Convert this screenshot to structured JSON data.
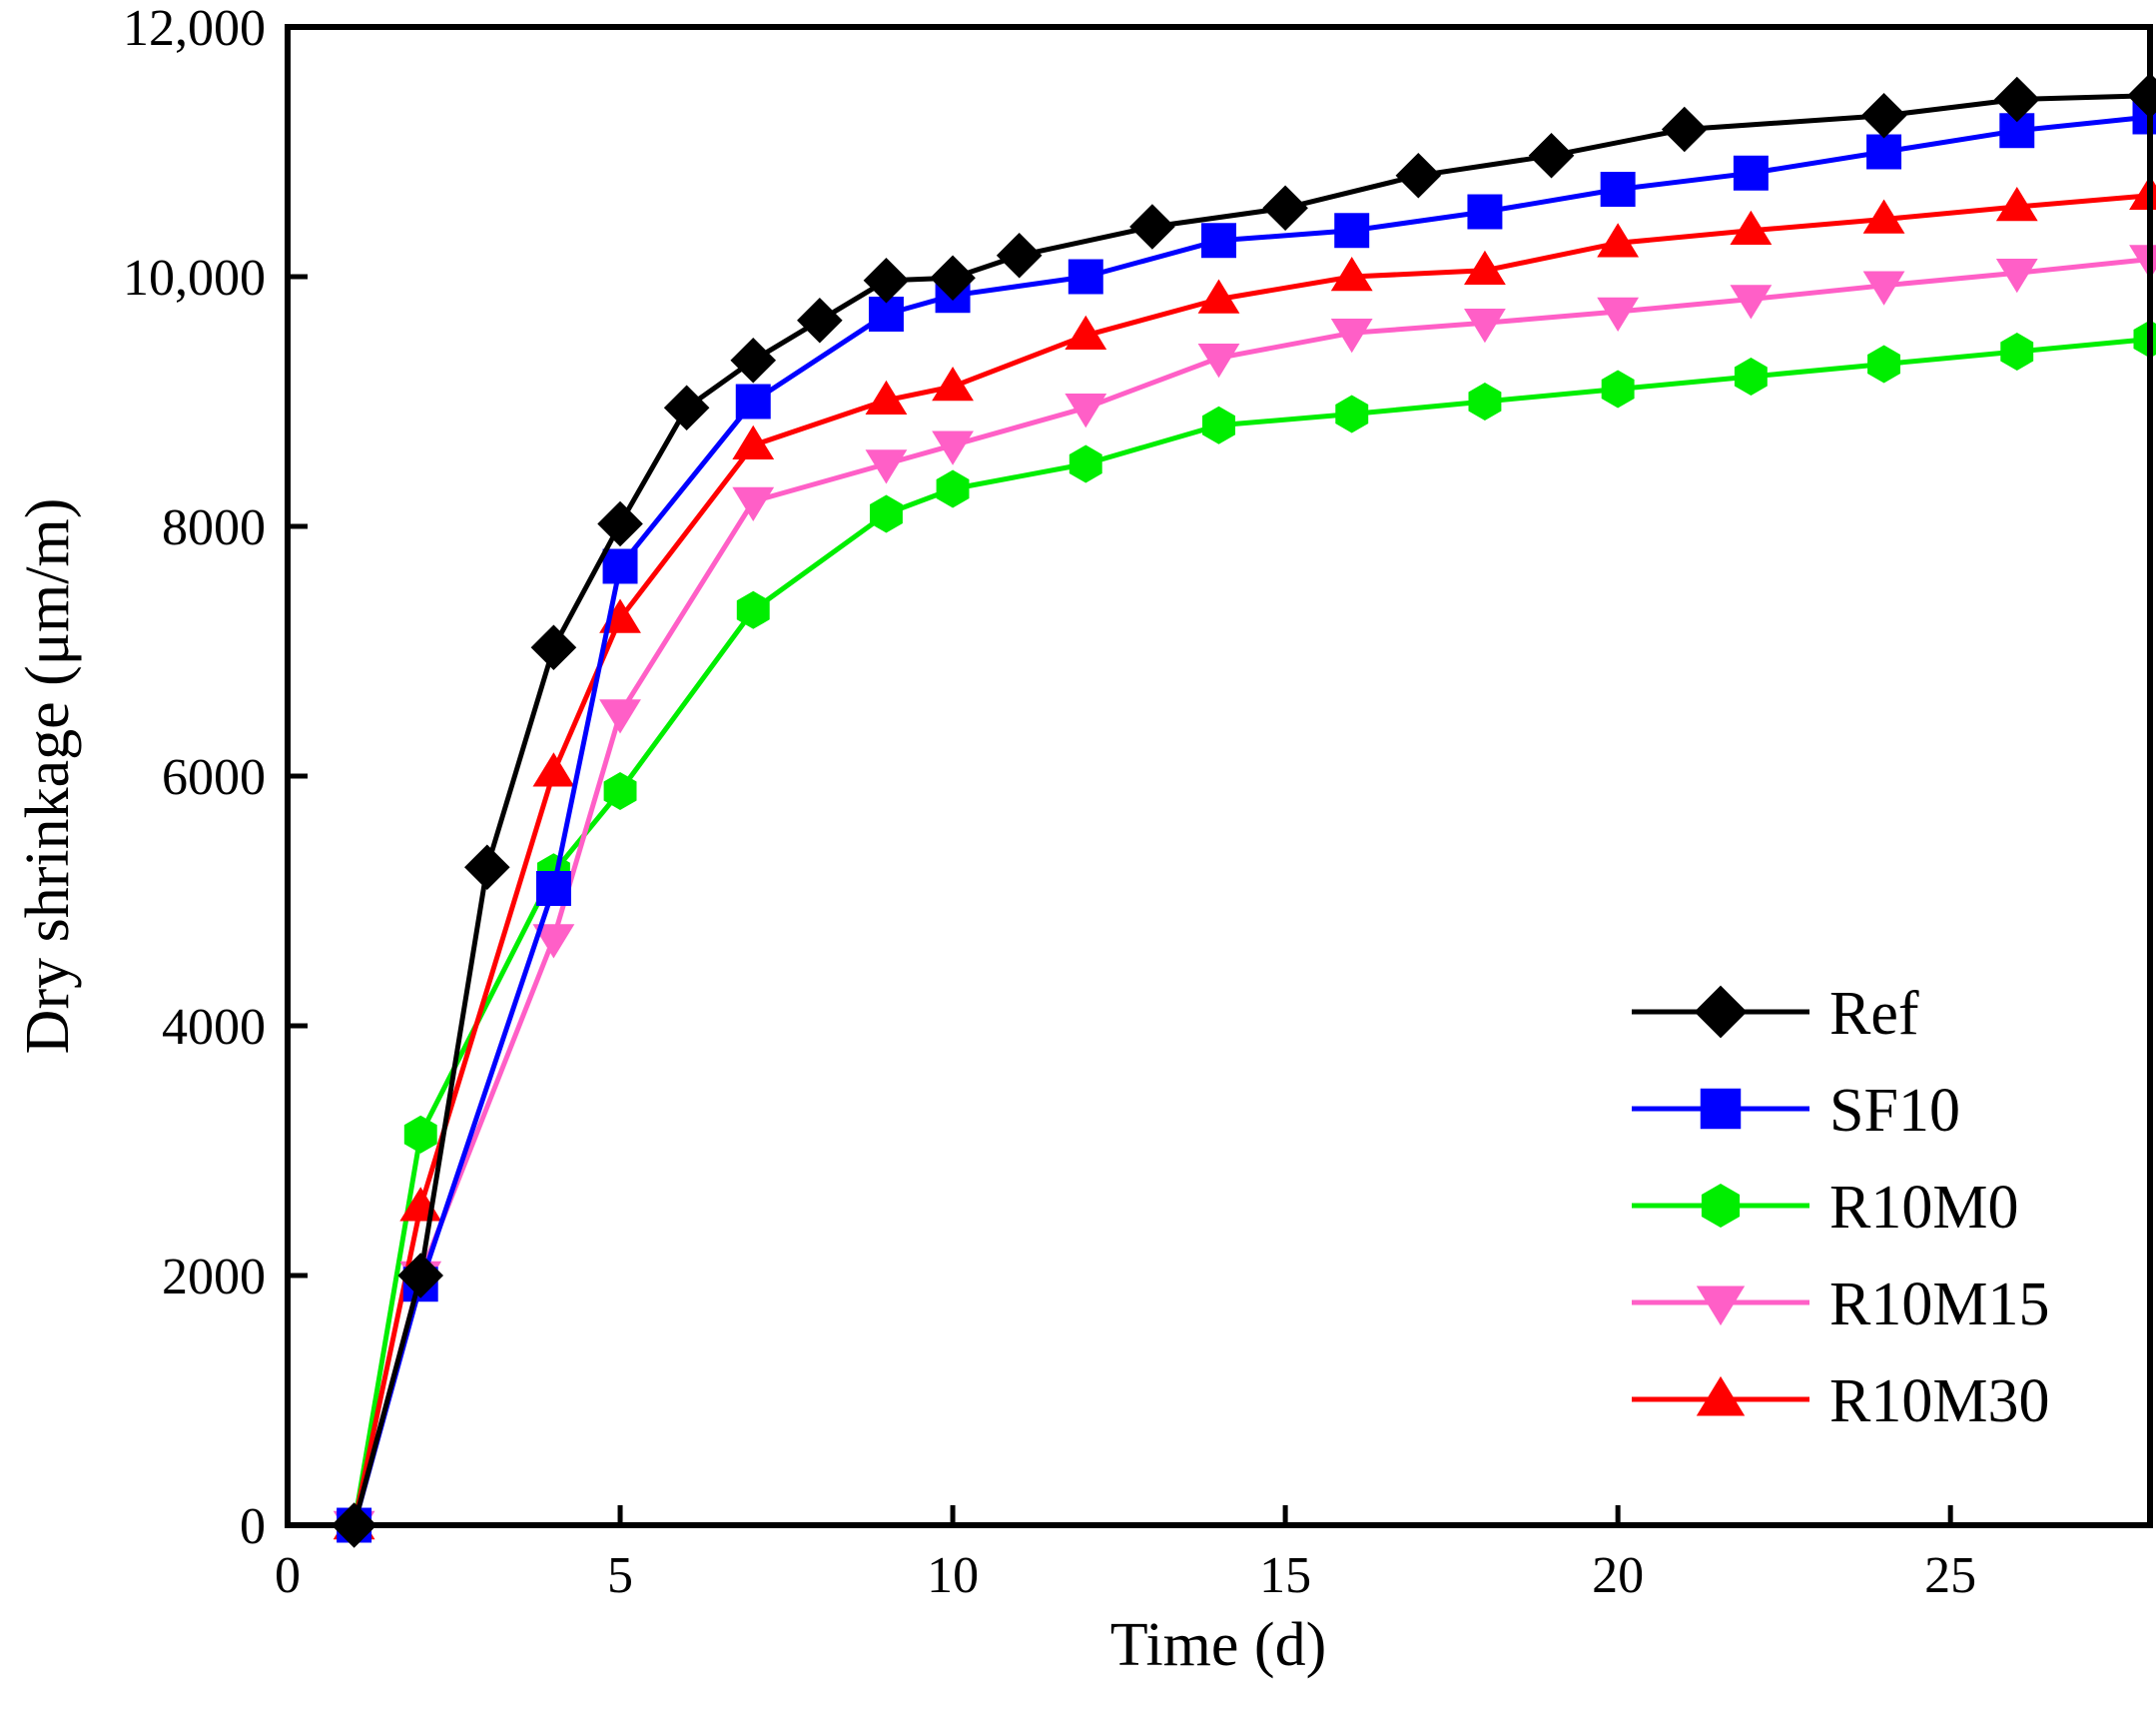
{
  "chart_data": {
    "type": "line",
    "title": "",
    "xlabel": "Time (d)",
    "ylabel": "Dry shrinkage (μm/m)",
    "xlim": [
      0,
      28
    ],
    "ylim": [
      0,
      12000
    ],
    "grid": false,
    "legend_position": "bottom-right",
    "x_ticks": [
      0,
      5,
      10,
      15,
      20,
      25
    ],
    "x_tick_labels": [
      "0",
      "5",
      "10",
      "15",
      "20",
      "25"
    ],
    "y_ticks": [
      0,
      2000,
      4000,
      6000,
      8000,
      10000,
      12000
    ],
    "y_tick_labels": [
      "0",
      "2000",
      "4000",
      "6000",
      "8000",
      "10,000",
      "12,000"
    ],
    "series": [
      {
        "name": "Ref",
        "color": "#000000",
        "marker": "diamond",
        "x": [
          1,
          2,
          3,
          4,
          5,
          6,
          7,
          8,
          9,
          10,
          11,
          13,
          15,
          17,
          19,
          21,
          24,
          26,
          28
        ],
        "y": [
          0,
          2000,
          5270,
          7030,
          8020,
          8950,
          9330,
          9650,
          9970,
          9990,
          10170,
          10400,
          10550,
          10810,
          10970,
          11180,
          11290,
          11420,
          11450
        ]
      },
      {
        "name": "SF10",
        "color": "#0000ff",
        "marker": "square",
        "x": [
          1,
          2,
          4,
          5,
          7,
          9,
          10,
          12,
          14,
          16,
          18,
          20,
          22,
          24,
          26,
          28
        ],
        "y": [
          0,
          1930,
          5100,
          7680,
          9000,
          9700,
          9850,
          10000,
          10290,
          10370,
          10520,
          10700,
          10830,
          11000,
          11170,
          11280
        ]
      },
      {
        "name": "R10M0",
        "color": "#00ee00",
        "marker": "hexagon",
        "x": [
          1,
          2,
          4,
          5,
          7,
          9,
          10,
          12,
          14,
          16,
          18,
          20,
          22,
          24,
          26,
          28
        ],
        "y": [
          0,
          3130,
          5230,
          5880,
          7330,
          8100,
          8300,
          8500,
          8810,
          8900,
          9000,
          9100,
          9200,
          9300,
          9400,
          9500
        ]
      },
      {
        "name": "R10M15",
        "color": "#ff5fc7",
        "marker": "triangle-down",
        "x": [
          1,
          2,
          4,
          5,
          7,
          9,
          10,
          12,
          14,
          16,
          18,
          20,
          22,
          24,
          26,
          28
        ],
        "y": [
          0,
          2000,
          4700,
          6500,
          8200,
          8500,
          8650,
          8950,
          9350,
          9550,
          9630,
          9720,
          9820,
          9930,
          10030,
          10140
        ]
      },
      {
        "name": "R10M30",
        "color": "#ff0000",
        "marker": "triangle-up",
        "x": [
          1,
          2,
          4,
          5,
          7,
          9,
          10,
          12,
          14,
          16,
          18,
          20,
          22,
          24,
          26,
          28
        ],
        "y": [
          0,
          2550,
          6030,
          7260,
          8650,
          9010,
          9120,
          9530,
          9820,
          10000,
          10050,
          10270,
          10370,
          10460,
          10560,
          10650
        ]
      }
    ]
  }
}
